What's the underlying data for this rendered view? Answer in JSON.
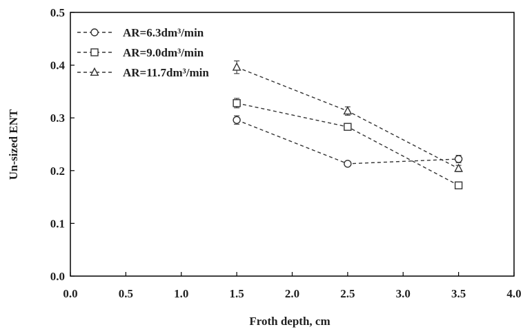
{
  "chart_data": {
    "type": "line",
    "title": "",
    "xlabel": "Froth depth, cm",
    "ylabel": "Un-sized ENT",
    "xlim": [
      0.0,
      4.0
    ],
    "ylim": [
      0.0,
      0.5
    ],
    "xticks": [
      "0.0",
      "0.5",
      "1.0",
      "1.5",
      "2.0",
      "2.5",
      "3.0",
      "3.5",
      "4.0"
    ],
    "yticks": [
      "0.0",
      "0.1",
      "0.2",
      "0.3",
      "0.4",
      "0.5"
    ],
    "grid": false,
    "legend_position": "top-left",
    "series": [
      {
        "name": "AR=6.3dm³/min",
        "marker": "circle",
        "color": "#333333",
        "line_style": "dashed",
        "x": [
          1.5,
          2.5,
          3.5
        ],
        "y": [
          0.296,
          0.213,
          0.222
        ],
        "error": [
          0.008,
          0.004,
          0.007
        ]
      },
      {
        "name": "AR=9.0dm³/min",
        "marker": "square",
        "color": "#333333",
        "line_style": "dashed",
        "x": [
          1.5,
          2.5,
          3.5
        ],
        "y": [
          0.328,
          0.283,
          0.172
        ],
        "error": [
          0.009,
          0.006,
          0.004
        ]
      },
      {
        "name": "AR=11.7dm³/min",
        "marker": "triangle",
        "color": "#333333",
        "line_style": "dashed",
        "x": [
          1.5,
          2.5,
          3.5
        ],
        "y": [
          0.396,
          0.313,
          0.204
        ],
        "error": [
          0.012,
          0.008,
          0.006
        ]
      }
    ]
  }
}
